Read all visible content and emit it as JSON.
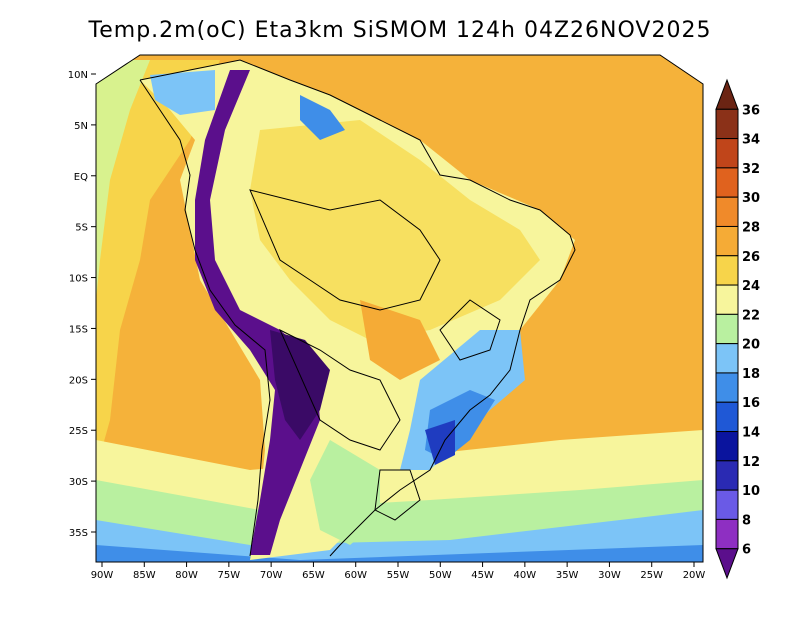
{
  "title": "Temp.2m(oC) Eta3km SiSMOM 124h 04Z26NOV2025",
  "map": {
    "lat_labels": [
      "10N",
      "5N",
      "EQ",
      "5S",
      "10S",
      "15S",
      "20S",
      "25S",
      "30S",
      "35S"
    ],
    "lat_values": [
      10,
      5,
      0,
      -5,
      -10,
      -15,
      -20,
      -25,
      -30,
      -35
    ],
    "lon_labels": [
      "90W",
      "85W",
      "80W",
      "75W",
      "70W",
      "65W",
      "60W",
      "55W",
      "50W",
      "45W",
      "40W",
      "35W",
      "30W",
      "25W",
      "20W"
    ],
    "lon_values": [
      -90,
      -85,
      -80,
      -75,
      -70,
      -65,
      -60,
      -55,
      -50,
      -45,
      -40,
      -35,
      -30,
      -25,
      -20
    ]
  },
  "colorbar": {
    "labels": [
      "6",
      "8",
      "10",
      "12",
      "14",
      "16",
      "18",
      "20",
      "22",
      "24",
      "26",
      "28",
      "30",
      "32",
      "34",
      "36"
    ],
    "colors": [
      "#5b0f8c",
      "#8e2fc2",
      "#6a5ae6",
      "#2a2ab3",
      "#0a149e",
      "#1f58d6",
      "#3f8ee8",
      "#7cc4f7",
      "#b9f0a0",
      "#f7f59c",
      "#f7d44a",
      "#f5ab36",
      "#f08a2a",
      "#e0621e",
      "#c0451a",
      "#8b3118",
      "#6b2413"
    ]
  }
}
